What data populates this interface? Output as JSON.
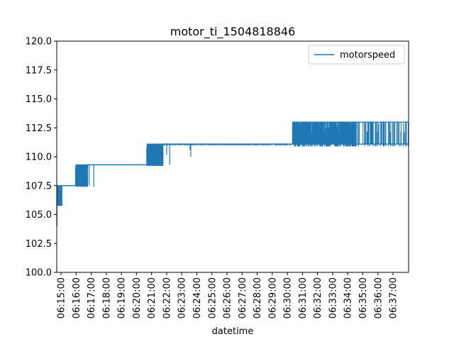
{
  "chart_data": {
    "type": "line",
    "title": "motor_ti_1504818846",
    "xlabel": "datetime",
    "ylabel": "",
    "ylim": [
      100.0,
      120.0
    ],
    "xlim": [
      "06:14:43",
      "06:38:02"
    ],
    "yticks": [
      "100.0",
      "102.5",
      "105.0",
      "107.5",
      "110.0",
      "112.5",
      "115.0",
      "117.5",
      "120.0"
    ],
    "xticks": [
      "06:15:00",
      "06:16:00",
      "06:17:00",
      "06:18:00",
      "06:19:00",
      "06:20:00",
      "06:21:00",
      "06:22:00",
      "06:23:00",
      "06:24:00",
      "06:25:00",
      "06:26:00",
      "06:27:00",
      "06:28:00",
      "06:29:00",
      "06:30:00",
      "06:31:00",
      "06:32:00",
      "06:33:00",
      "06:34:00",
      "06:35:00",
      "06:36:00",
      "06:37:00"
    ],
    "grid": false,
    "legend_position": "top-right",
    "series": [
      {
        "name": "motorspeed",
        "color": "#1f77b4",
        "segments": [
          {
            "start": "06:14:43",
            "end": "06:15:03",
            "base": 105.8,
            "low": 105.8,
            "high": 107.5
          },
          {
            "start": "06:15:03",
            "end": "06:15:58",
            "base": 107.5,
            "low": 107.5,
            "high": 107.5
          },
          {
            "start": "06:15:58",
            "end": "06:16:45",
            "base": 107.5,
            "low": 107.4,
            "high": 109.3
          },
          {
            "start": "06:16:45",
            "end": "06:20:40",
            "base": 109.3,
            "low": 109.3,
            "high": 109.3
          },
          {
            "start": "06:20:40",
            "end": "06:21:45",
            "base": 109.3,
            "low": 109.2,
            "high": 111.1
          },
          {
            "start": "06:21:45",
            "end": "06:30:20",
            "base": 111.1,
            "low": 111.0,
            "high": 111.1
          },
          {
            "start": "06:30:20",
            "end": "06:38:02",
            "base": 111.1,
            "low": 110.9,
            "high": 113.0
          }
        ],
        "spikes": [
          {
            "t": "06:14:44",
            "y": 104.0
          },
          {
            "t": "06:16:20",
            "y": 107.5
          },
          {
            "t": "06:16:52",
            "y": 107.5
          },
          {
            "t": "06:17:10",
            "y": 107.4
          },
          {
            "t": "06:15:58",
            "y": 109.1
          },
          {
            "t": "06:22:00",
            "y": 110.2
          },
          {
            "t": "06:22:12",
            "y": 109.3
          },
          {
            "t": "06:23:33",
            "y": 110.6
          },
          {
            "t": "06:23:36",
            "y": 110.0
          },
          {
            "t": "06:37:45",
            "y": 112.1
          },
          {
            "t": "06:37:50",
            "y": 111.0
          }
        ]
      }
    ]
  }
}
